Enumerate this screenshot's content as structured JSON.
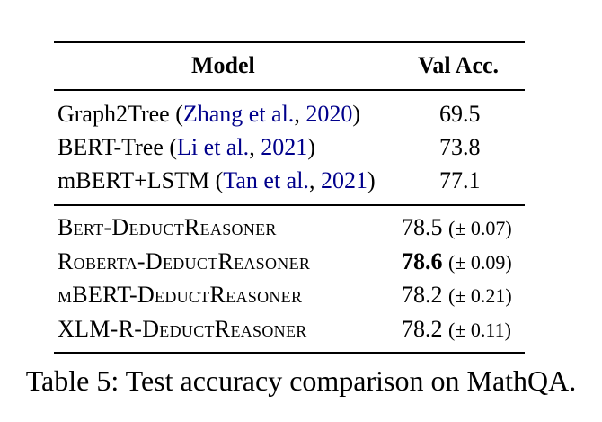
{
  "table": {
    "header": {
      "model": "Model",
      "val_acc": "Val Acc."
    },
    "baselines": [
      {
        "name": "Graph2Tree",
        "open": " (",
        "cite_author": "Zhang et al.",
        "sep": ", ",
        "cite_year": "2020",
        "close": ")",
        "acc": "69.5"
      },
      {
        "name": "BERT-Tree",
        "open": " (",
        "cite_author": "Li et al.",
        "sep": ", ",
        "cite_year": "2021",
        "close": ")",
        "acc": "73.8"
      },
      {
        "name": "mBERT+LSTM",
        "open": " (",
        "cite_author": "Tan et al.",
        "sep": ", ",
        "cite_year": "2021",
        "close": ")",
        "acc": "77.1"
      }
    ],
    "ours": [
      {
        "name": "Bert-DeductReasoner",
        "acc": "78.5",
        "std": "(± 0.07)",
        "best": false
      },
      {
        "name": "Roberta-DeductReasoner",
        "acc": "78.6",
        "std": "(± 0.09)",
        "best": true
      },
      {
        "name": "mBERT-DeductReasoner",
        "acc": "78.2",
        "std": "(± 0.21)",
        "best": false
      },
      {
        "name": "XLM-R-DeductReasoner",
        "acc": "78.2",
        "std": "(± 0.11)",
        "best": false
      }
    ]
  },
  "caption": "Table 5: Test accuracy comparison on MathQA.",
  "colors": {
    "citation": "#00008b",
    "text": "#000000"
  }
}
